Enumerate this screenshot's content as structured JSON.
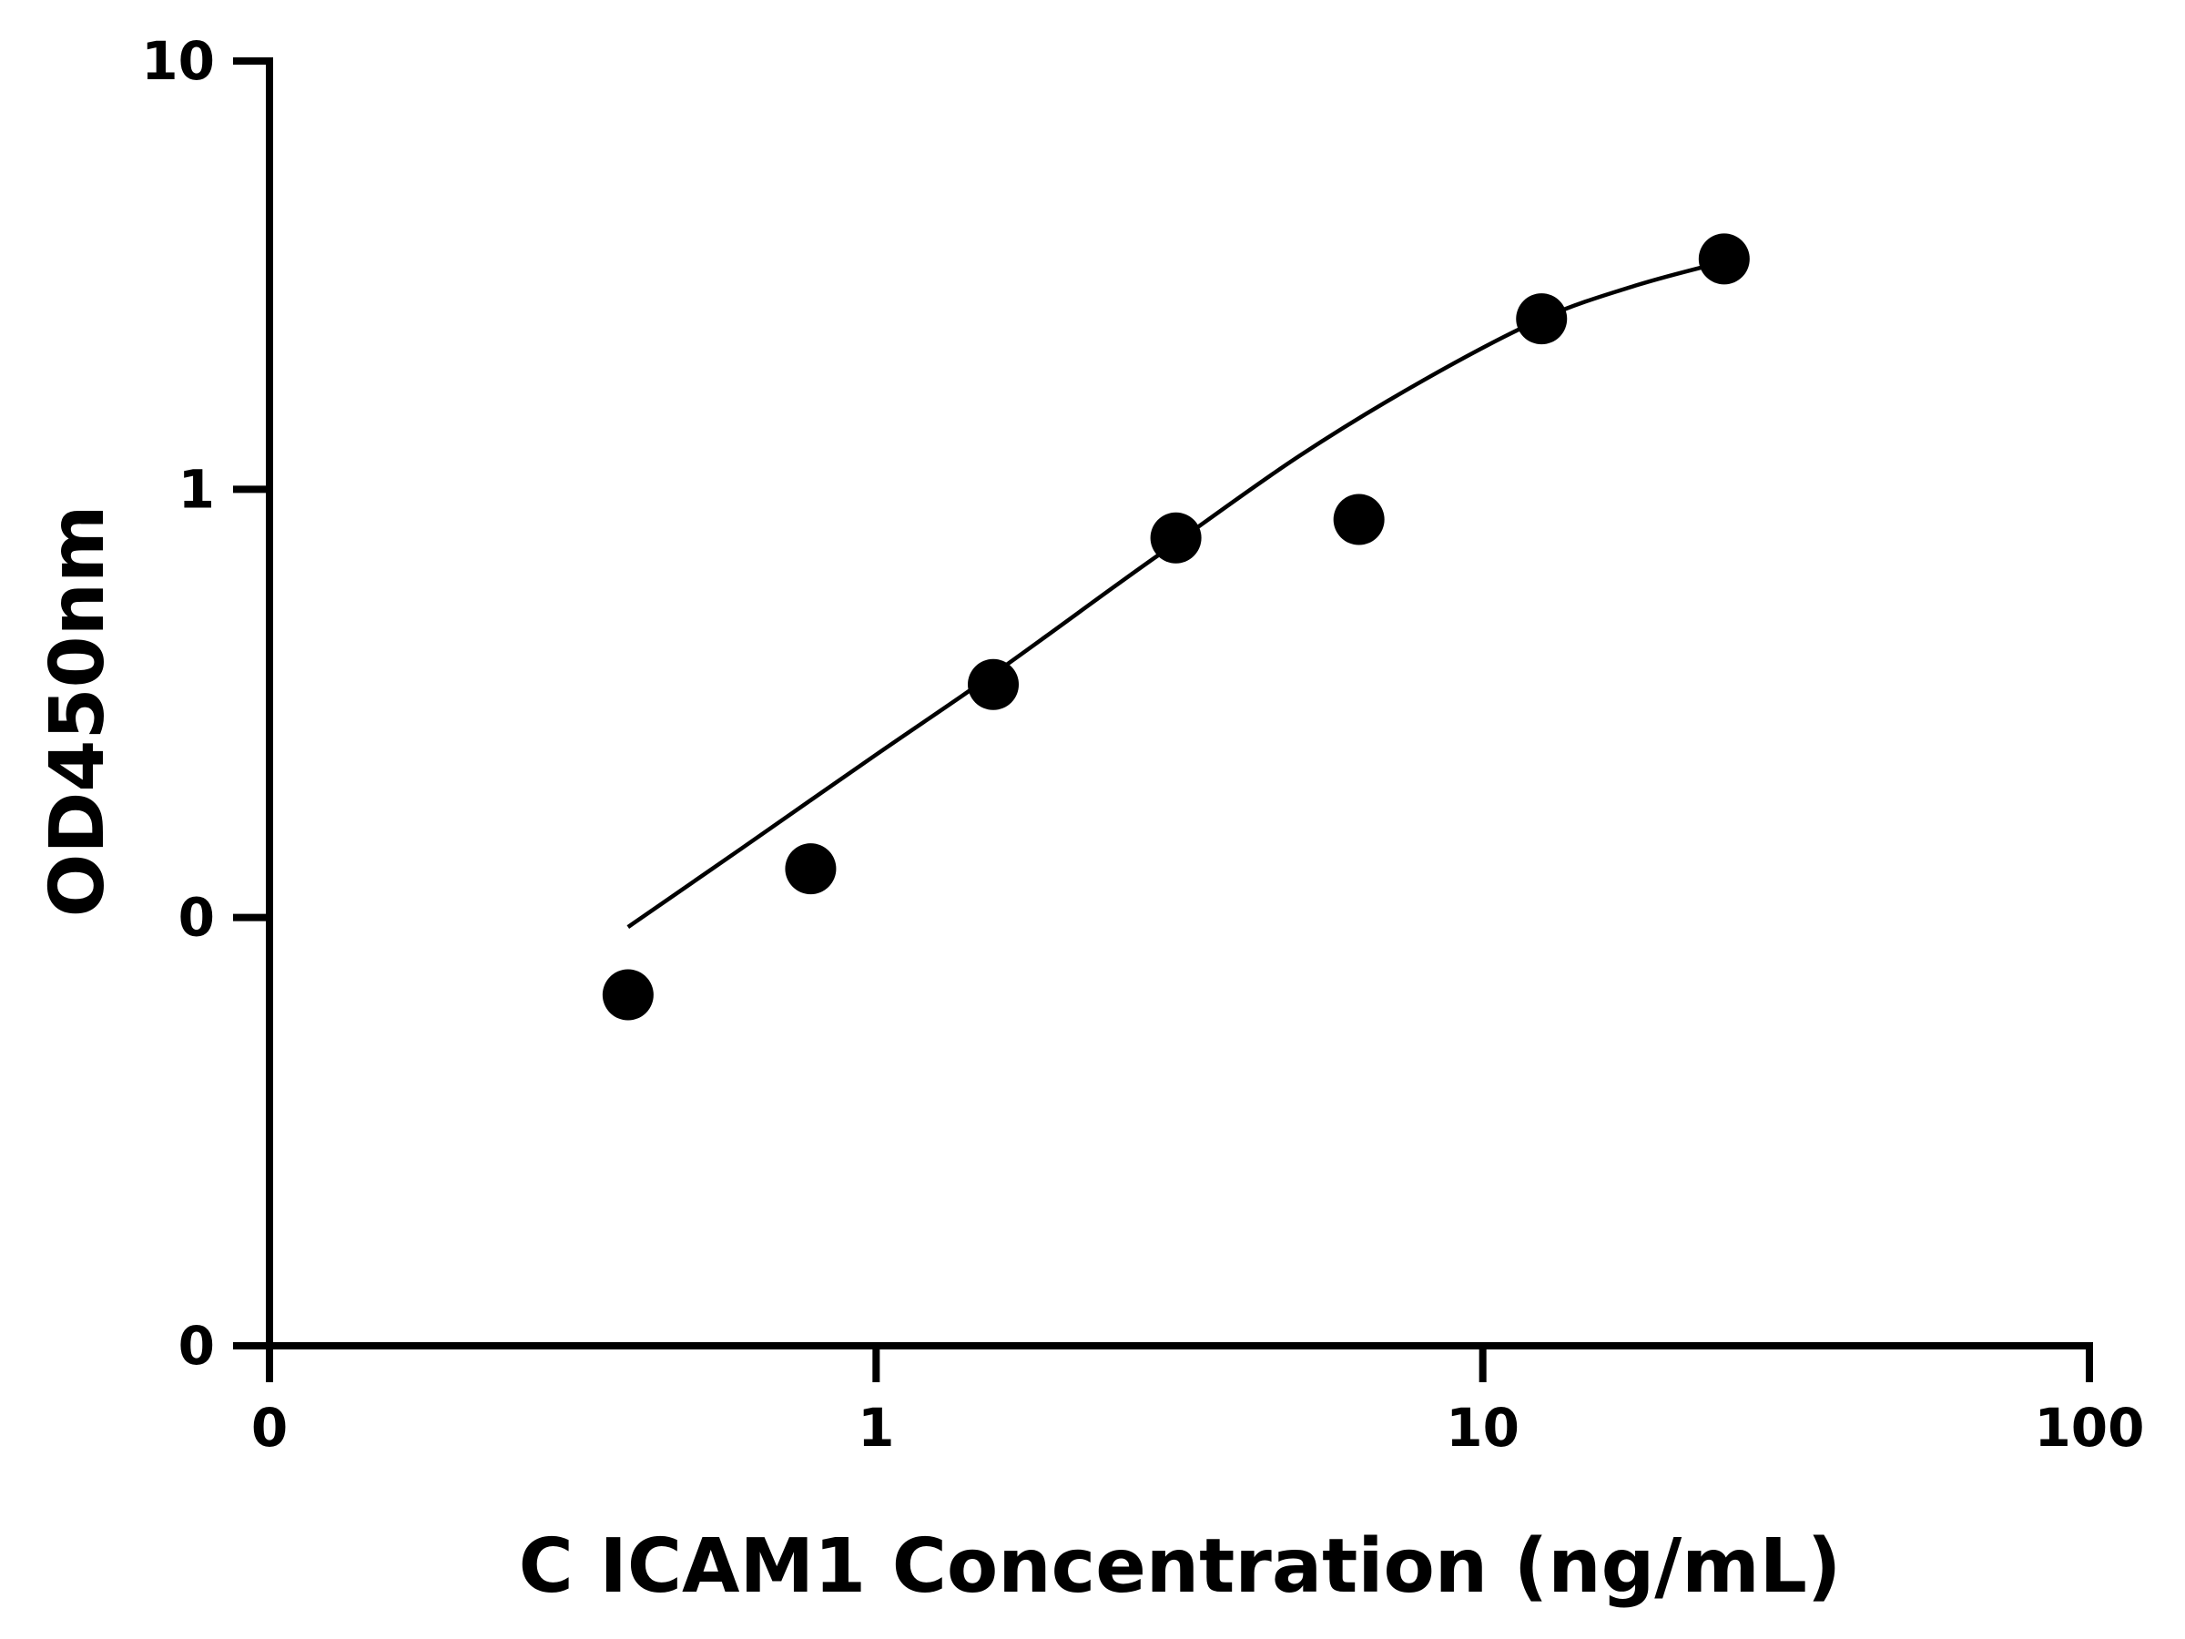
{
  "chart_data": {
    "type": "scatter",
    "title": "",
    "xlabel": "C ICAM1 Concentration (ng/mL)",
    "ylabel": "OD450nm",
    "x_scale": "log",
    "y_scale": "log",
    "x_ticks": [
      {
        "label": "0",
        "value": 0.1
      },
      {
        "label": "1",
        "value": 1
      },
      {
        "label": "10",
        "value": 10
      },
      {
        "label": "100",
        "value": 100
      }
    ],
    "y_ticks": [
      {
        "label": "0",
        "value": 0.01
      },
      {
        "label": "0",
        "value": 0.1
      },
      {
        "label": "1",
        "value": 1
      },
      {
        "label": "10",
        "value": 10
      }
    ],
    "xlim": [
      0.1,
      100
    ],
    "ylim": [
      0.01,
      10
    ],
    "grid": false,
    "legend": "none",
    "points": [
      {
        "x": 0.39,
        "y": 0.066
      },
      {
        "x": 0.78,
        "y": 0.13
      },
      {
        "x": 1.56,
        "y": 0.35
      },
      {
        "x": 3.12,
        "y": 0.77
      },
      {
        "x": 6.25,
        "y": 0.85
      },
      {
        "x": 12.5,
        "y": 2.5
      },
      {
        "x": 25,
        "y": 3.45
      }
    ],
    "fit_curve": [
      {
        "x": 0.39,
        "y": 0.095
      },
      {
        "x": 0.6,
        "y": 0.145
      },
      {
        "x": 1,
        "y": 0.24
      },
      {
        "x": 1.56,
        "y": 0.37
      },
      {
        "x": 2.5,
        "y": 0.6
      },
      {
        "x": 3.12,
        "y": 0.75
      },
      {
        "x": 5,
        "y": 1.2
      },
      {
        "x": 8,
        "y": 1.8
      },
      {
        "x": 12.5,
        "y": 2.5
      },
      {
        "x": 18,
        "y": 3.0
      },
      {
        "x": 25,
        "y": 3.4
      }
    ],
    "colors": {
      "marks": "#000000",
      "background": "#ffffff"
    }
  }
}
